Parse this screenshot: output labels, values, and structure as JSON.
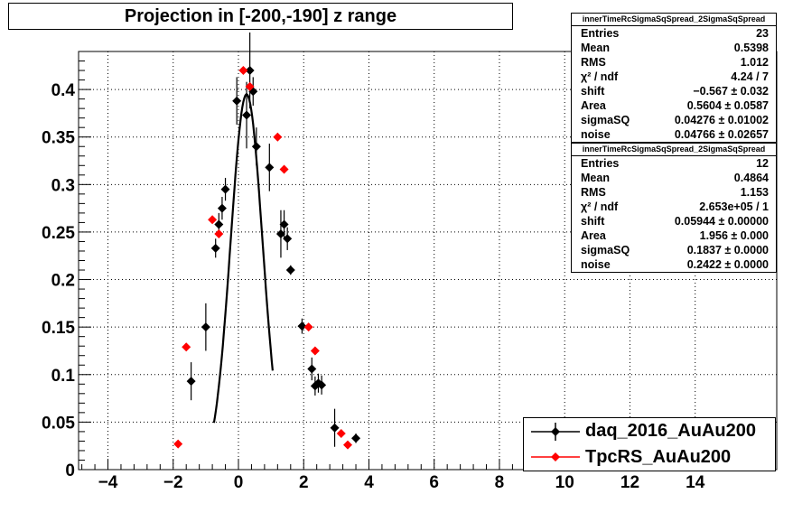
{
  "chart_data": {
    "type": "scatter",
    "title": "Projection in [-200,-190] z range",
    "xlim": [
      -4.9,
      16.5
    ],
    "ylim": [
      0,
      0.44
    ],
    "grid": true,
    "x_ticks": [
      -4,
      -2,
      0,
      2,
      4,
      6,
      8,
      10,
      12,
      14
    ],
    "y_ticks": [
      0,
      0.05,
      0.1,
      0.15,
      0.2,
      0.25,
      0.3,
      0.35,
      0.4
    ],
    "y_tick_labels": [
      "0",
      "0.05",
      "0.1",
      "0.15",
      "0.2",
      "0.25",
      "0.3",
      "0.35",
      "0.4"
    ],
    "legend_position": "bottom-right",
    "series": [
      {
        "name": "daq_2016_AuAu200",
        "color": "#000000",
        "x": [
          -1.0,
          -0.7,
          -0.6,
          -0.5,
          -0.4,
          -0.05,
          0.25,
          0.35,
          0.45,
          0.55,
          0.95,
          1.3,
          1.4,
          1.5,
          1.6,
          1.95,
          2.25,
          2.35,
          2.45,
          2.55,
          2.95,
          3.6,
          -1.45
        ],
        "y": [
          0.15,
          0.233,
          0.258,
          0.275,
          0.295,
          0.388,
          0.373,
          0.42,
          0.398,
          0.34,
          0.318,
          0.248,
          0.258,
          0.243,
          0.21,
          0.151,
          0.106,
          0.088,
          0.091,
          0.089,
          0.044,
          0.033,
          0.093
        ],
        "err": [
          0.025,
          0.01,
          0.012,
          0.012,
          0.012,
          0.025,
          0.035,
          0.04,
          0.015,
          0.02,
          0.025,
          0.025,
          0.015,
          0.012,
          0.005,
          0.008,
          0.012,
          0.01,
          0.01,
          0.01,
          0.02,
          0.005,
          0.02
        ]
      },
      {
        "name": "TpcRS_AuAu200",
        "color": "#ff0000",
        "x": [
          -1.85,
          -1.6,
          -0.8,
          -0.6,
          0.15,
          0.35,
          1.2,
          1.4,
          2.15,
          2.35,
          3.15,
          3.35
        ],
        "y": [
          0.027,
          0.129,
          0.263,
          0.248,
          0.42,
          0.403,
          0.35,
          0.316,
          0.15,
          0.125,
          0.038,
          0.026
        ],
        "err": [
          0,
          0,
          0,
          0,
          0,
          0,
          0,
          0,
          0,
          0,
          0,
          0
        ]
      }
    ],
    "fit_curve": {
      "color": "#000000",
      "x_range": [
        -0.75,
        1.05
      ],
      "mean": 0.25,
      "sigma": 0.49,
      "amplitude": 0.395
    }
  },
  "stats_boxes": [
    {
      "header": "innerTimeRcSigmaSqSpread_2SigmaSqSpread",
      "rows": [
        [
          "Entries",
          "23"
        ],
        [
          "Mean",
          "0.5398"
        ],
        [
          "RMS",
          "1.012"
        ],
        [
          "χ² / ndf",
          "4.24 / 7"
        ],
        [
          "shift",
          "−0.567 ± 0.032"
        ],
        [
          "Area",
          "0.5604 ± 0.0587"
        ],
        [
          "sigmaSQ",
          "0.04276 ± 0.01002"
        ],
        [
          "noise",
          "0.04766 ± 0.02657"
        ]
      ]
    },
    {
      "header": "innerTimeRcSigmaSqSpread_2SigmaSqSpread",
      "rows": [
        [
          "Entries",
          "12"
        ],
        [
          "Mean",
          "0.4864"
        ],
        [
          "RMS",
          "1.153"
        ],
        [
          "χ² / ndf",
          "2.653e+05 / 1"
        ],
        [
          "shift",
          "0.05944 ± 0.00000"
        ],
        [
          "Area",
          "1.956 ± 0.000"
        ],
        [
          "sigmaSQ",
          "0.1837 ± 0.0000"
        ],
        [
          "noise",
          "0.2422 ± 0.0000"
        ]
      ]
    }
  ]
}
